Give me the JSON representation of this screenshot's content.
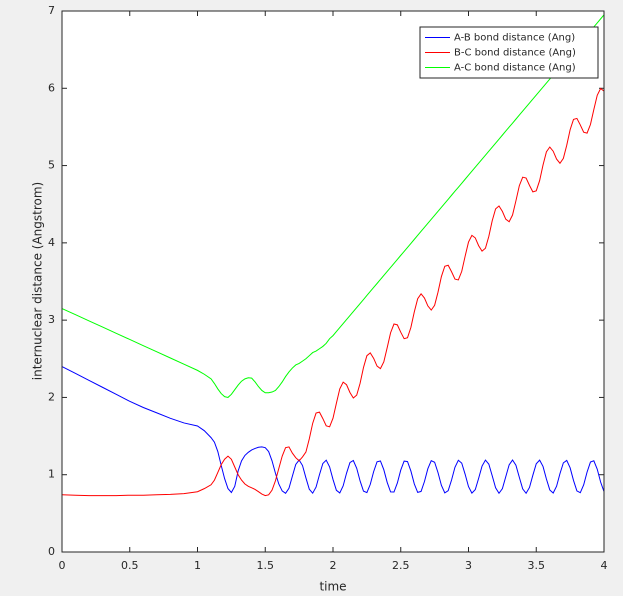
{
  "chart_data": {
    "type": "line",
    "x_label": "time",
    "y_label": "internuclear distance (Angstrom)",
    "x": [
      0,
      0.1,
      0.2,
      0.3,
      0.4,
      0.5,
      0.6,
      0.7,
      0.8,
      0.9,
      1.0,
      1.05,
      1.1,
      1.125,
      1.15,
      1.175,
      1.2,
      1.225,
      1.25,
      1.275,
      1.3,
      1.325,
      1.35,
      1.375,
      1.4,
      1.425,
      1.45,
      1.475,
      1.5,
      1.525,
      1.55,
      1.575,
      1.6,
      1.625,
      1.65,
      1.675,
      1.7,
      1.725,
      1.75,
      1.775,
      1.8,
      1.825,
      1.85,
      1.875,
      1.9,
      1.925,
      1.95,
      1.975,
      2.0,
      2.025,
      2.05,
      2.075,
      2.1,
      2.125,
      2.15,
      2.175,
      2.2,
      2.225,
      2.25,
      2.275,
      2.3,
      2.325,
      2.35,
      2.375,
      2.4,
      2.425,
      2.45,
      2.475,
      2.5,
      2.525,
      2.55,
      2.575,
      2.6,
      2.625,
      2.65,
      2.675,
      2.7,
      2.725,
      2.75,
      2.775,
      2.8,
      2.825,
      2.85,
      2.875,
      2.9,
      2.925,
      2.95,
      2.975,
      3.0,
      3.025,
      3.05,
      3.075,
      3.1,
      3.125,
      3.15,
      3.175,
      3.2,
      3.225,
      3.25,
      3.275,
      3.3,
      3.325,
      3.35,
      3.375,
      3.4,
      3.425,
      3.45,
      3.475,
      3.5,
      3.525,
      3.55,
      3.575,
      3.6,
      3.625,
      3.65,
      3.675,
      3.7,
      3.725,
      3.75,
      3.775,
      3.8,
      3.825,
      3.85,
      3.875,
      3.9,
      3.925,
      3.95,
      3.975,
      4.0
    ],
    "series": [
      {
        "name": "A-B bond distance (Ang)",
        "color": "#0000ff",
        "values": [
          2.4,
          2.31,
          2.22,
          2.13,
          2.04,
          1.95,
          1.87,
          1.8,
          1.73,
          1.67,
          1.63,
          1.57,
          1.48,
          1.42,
          1.3,
          1.12,
          0.95,
          0.82,
          0.77,
          0.85,
          1.05,
          1.18,
          1.25,
          1.29,
          1.32,
          1.34,
          1.355,
          1.36,
          1.35,
          1.3,
          1.18,
          1.02,
          0.88,
          0.79,
          0.76,
          0.825,
          0.98,
          1.132,
          1.19,
          1.119,
          0.96,
          0.812,
          0.761,
          0.84,
          1.0,
          1.145,
          1.188,
          1.101,
          0.939,
          0.798,
          0.764,
          0.856,
          1.02,
          1.157,
          1.184,
          1.083,
          0.919,
          0.788,
          0.769,
          0.875,
          1.04,
          1.167,
          1.178,
          1.065,
          0.9,
          0.778,
          0.776,
          0.893,
          1.06,
          1.176,
          1.17,
          1.047,
          0.881,
          0.771,
          0.784,
          0.912,
          1.078,
          1.182,
          1.161,
          1.027,
          0.862,
          0.765,
          0.794,
          0.932,
          1.096,
          1.187,
          1.15,
          1.007,
          0.846,
          0.762,
          0.807,
          0.954,
          1.112,
          1.189,
          1.137,
          0.987,
          0.831,
          0.76,
          0.82,
          0.974,
          1.128,
          1.19,
          1.123,
          0.967,
          0.816,
          0.76,
          0.835,
          0.994,
          1.142,
          1.189,
          1.107,
          0.945,
          0.803,
          0.763,
          0.851,
          1.014,
          1.153,
          1.185,
          1.089,
          0.926,
          0.79,
          0.767,
          0.869,
          1.034,
          1.164,
          1.18,
          1.072,
          0.906,
          0.781
        ]
      },
      {
        "name": "B-C bond distance (Ang)",
        "color": "#ff0000",
        "values": [
          0.74,
          0.735,
          0.73,
          0.73,
          0.73,
          0.735,
          0.735,
          0.74,
          0.745,
          0.755,
          0.78,
          0.82,
          0.87,
          0.93,
          1.03,
          1.13,
          1.2,
          1.24,
          1.2,
          1.1,
          1.0,
          0.93,
          0.88,
          0.85,
          0.83,
          0.81,
          0.78,
          0.75,
          0.73,
          0.74,
          0.8,
          0.92,
          1.08,
          1.24,
          1.35,
          1.36,
          1.28,
          1.22,
          1.18,
          1.23,
          1.293,
          1.464,
          1.665,
          1.798,
          1.81,
          1.726,
          1.632,
          1.62,
          1.731,
          1.925,
          2.11,
          2.198,
          2.164,
          2.064,
          1.993,
          2.03,
          2.184,
          2.387,
          2.54,
          2.577,
          2.506,
          2.406,
          2.373,
          2.46,
          2.644,
          2.837,
          2.95,
          2.939,
          2.844,
          2.76,
          2.773,
          2.906,
          3.107,
          3.277,
          3.34,
          3.286,
          3.184,
          3.13,
          3.193,
          3.363,
          3.564,
          3.697,
          3.71,
          3.626,
          3.531,
          3.52,
          3.631,
          3.826,
          4.01,
          4.097,
          4.064,
          3.963,
          3.893,
          3.93,
          4.084,
          4.286,
          4.44,
          4.477,
          4.407,
          4.306,
          4.273,
          4.36,
          4.544,
          4.739,
          4.85,
          4.839,
          4.744,
          4.66,
          4.673,
          4.806,
          5.007,
          5.177,
          5.24,
          5.186,
          5.084,
          5.03,
          5.093,
          5.263,
          5.464,
          5.597,
          5.61,
          5.526,
          5.431,
          5.42,
          5.531,
          5.726,
          5.91,
          5.997,
          5.964
        ]
      },
      {
        "name": "A-C bond distance (Ang)",
        "color": "#00ff00",
        "values": [
          3.15,
          3.07,
          2.99,
          2.91,
          2.83,
          2.75,
          2.67,
          2.59,
          2.51,
          2.43,
          2.35,
          2.3,
          2.24,
          2.18,
          2.11,
          2.05,
          2.01,
          2.0,
          2.04,
          2.1,
          2.16,
          2.21,
          2.24,
          2.255,
          2.25,
          2.2,
          2.14,
          2.09,
          2.06,
          2.06,
          2.07,
          2.09,
          2.14,
          2.2,
          2.27,
          2.33,
          2.38,
          2.42,
          2.44,
          2.47,
          2.5,
          2.54,
          2.58,
          2.6,
          2.63,
          2.66,
          2.7,
          2.76,
          2.8,
          2.852,
          2.904,
          2.956,
          3.008,
          3.059,
          3.111,
          3.163,
          3.215,
          3.267,
          3.319,
          3.371,
          3.423,
          3.474,
          3.526,
          3.578,
          3.63,
          3.682,
          3.734,
          3.786,
          3.838,
          3.889,
          3.941,
          3.993,
          4.045,
          4.097,
          4.149,
          4.201,
          4.253,
          4.304,
          4.356,
          4.408,
          4.46,
          4.512,
          4.564,
          4.616,
          4.668,
          4.719,
          4.771,
          4.823,
          4.875,
          4.927,
          4.979,
          5.031,
          5.083,
          5.134,
          5.186,
          5.238,
          5.29,
          5.342,
          5.394,
          5.446,
          5.498,
          5.549,
          5.601,
          5.653,
          5.705,
          5.757,
          5.809,
          5.861,
          5.913,
          5.964,
          6.016,
          6.068,
          6.12,
          6.172,
          6.224,
          6.276,
          6.328,
          6.379,
          6.431,
          6.483,
          6.535,
          6.587,
          6.639,
          6.691,
          6.743,
          6.794,
          6.846,
          6.898,
          6.95
        ]
      }
    ],
    "xlim": [
      0,
      4
    ],
    "xticks": [
      0,
      0.5,
      1,
      1.5,
      2,
      2.5,
      3,
      3.5,
      4
    ],
    "ylim": [
      0,
      7
    ],
    "yticks": [
      0,
      1,
      2,
      3,
      4,
      5,
      6,
      7
    ],
    "grid": false,
    "legend": "northeast"
  }
}
